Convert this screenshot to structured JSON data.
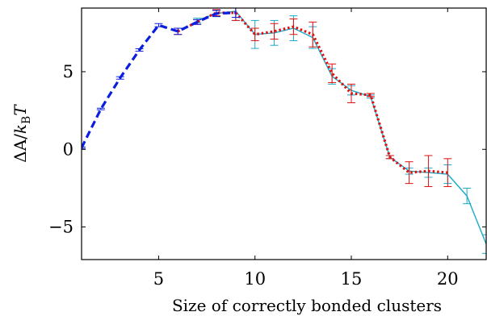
{
  "chart_data": {
    "type": "line",
    "xlabel": "Size of correctly bonded clusters",
    "ylabel": "ΔA/k_BT",
    "ylabel_parts": {
      "delta_a": "ΔA/",
      "k": "k",
      "sub": "B",
      "t": "T"
    },
    "xlim": [
      1,
      22
    ],
    "ylim": [
      -7.1,
      9.1
    ],
    "xticks": [
      5,
      10,
      15,
      20
    ],
    "yticks": [
      5,
      0,
      -5
    ],
    "ytick_labels": [
      "5",
      "0",
      "−5"
    ],
    "series": [
      {
        "style": "dashed",
        "color": "#0b1ee0",
        "points": [
          {
            "x": 1,
            "y": 0.1,
            "err": 0.05
          },
          {
            "x": 2,
            "y": 2.6,
            "err": 0.05
          },
          {
            "x": 3,
            "y": 4.6,
            "err": 0.08
          },
          {
            "x": 4,
            "y": 6.4,
            "err": 0.08
          },
          {
            "x": 5,
            "y": 8.0,
            "err": 0.1
          },
          {
            "x": 6,
            "y": 7.6,
            "err": 0.2
          },
          {
            "x": 7,
            "y": 8.2,
            "err": 0.15
          },
          {
            "x": 8,
            "y": 8.75,
            "err": 0.2
          },
          {
            "x": 9,
            "y": 8.8,
            "err": 0.3
          }
        ]
      },
      {
        "style": "dotted",
        "color": "#e01010",
        "points": [
          {
            "x": 6,
            "y": 7.6,
            "err": 0.2
          },
          {
            "x": 7,
            "y": 8.2,
            "err": 0.15
          },
          {
            "x": 8,
            "y": 8.8,
            "err": 0.2
          },
          {
            "x": 9,
            "y": 8.8,
            "err": 0.5
          },
          {
            "x": 10,
            "y": 7.4,
            "err": 0.4
          },
          {
            "x": 11,
            "y": 7.6,
            "err": 0.5
          },
          {
            "x": 12,
            "y": 7.9,
            "err": 0.5
          },
          {
            "x": 13,
            "y": 7.4,
            "err": 0.8
          },
          {
            "x": 14,
            "y": 4.9,
            "err": 0.6
          },
          {
            "x": 15,
            "y": 3.6,
            "err": 0.6
          },
          {
            "x": 16,
            "y": 3.5,
            "err": 0.1
          },
          {
            "x": 17,
            "y": -0.5,
            "err": 0.1
          },
          {
            "x": 18,
            "y": -1.5,
            "err": 0.7
          },
          {
            "x": 19,
            "y": -1.4,
            "err": 1.0
          },
          {
            "x": 20,
            "y": -1.5,
            "err": 0.9
          }
        ]
      },
      {
        "style": "solid",
        "color": "#1aa9c9",
        "points": [
          {
            "x": 7,
            "y": 8.3,
            "err": 0.15
          },
          {
            "x": 8,
            "y": 8.75,
            "err": 0.2
          },
          {
            "x": 9,
            "y": 8.9,
            "err": 0.6
          },
          {
            "x": 10,
            "y": 7.4,
            "err": 0.9
          },
          {
            "x": 11,
            "y": 7.5,
            "err": 0.8
          },
          {
            "x": 12,
            "y": 7.8,
            "err": 0.8
          },
          {
            "x": 13,
            "y": 7.2,
            "err": 0.7
          },
          {
            "x": 14,
            "y": 4.7,
            "err": 0.5
          },
          {
            "x": 15,
            "y": 3.8,
            "err": 0.3
          },
          {
            "x": 16,
            "y": 3.4,
            "err": 0.1
          },
          {
            "x": 17,
            "y": -0.5,
            "err": 0.1
          },
          {
            "x": 18,
            "y": -1.4,
            "err": 0.2
          },
          {
            "x": 19,
            "y": -1.5,
            "err": 0.3
          },
          {
            "x": 20,
            "y": -1.6,
            "err": 0.6
          },
          {
            "x": 21,
            "y": -3.0,
            "err": 0.5
          },
          {
            "x": 22,
            "y": -6.1,
            "err": 0.6
          }
        ]
      }
    ]
  }
}
